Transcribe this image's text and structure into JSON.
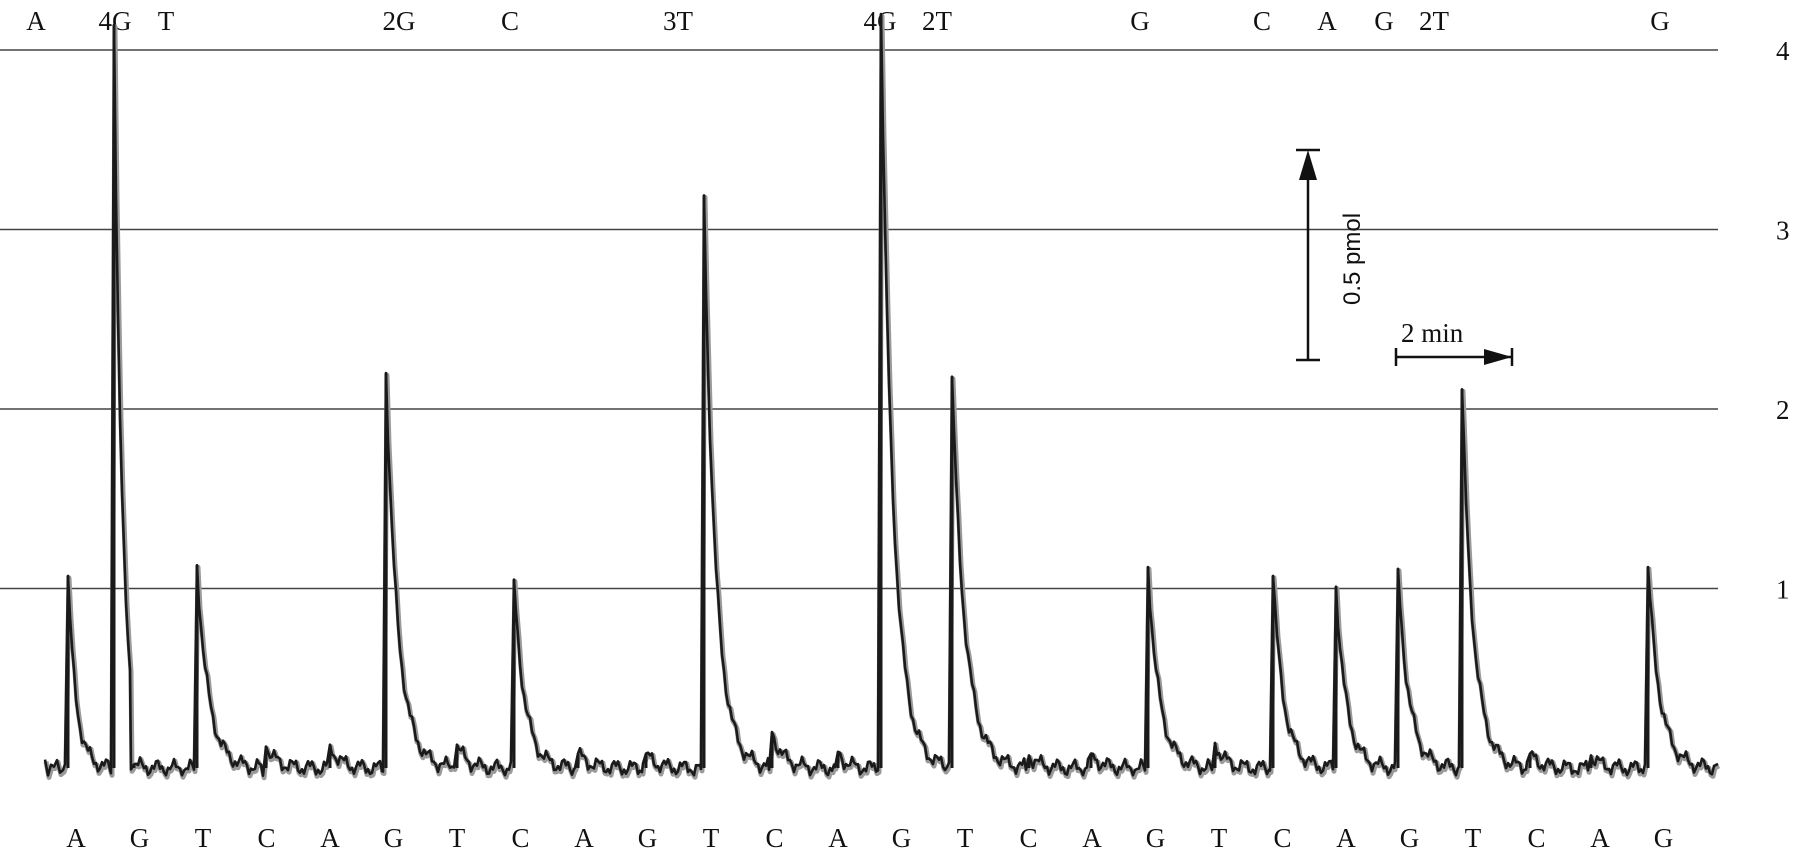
{
  "chart_data": {
    "type": "line",
    "title": "",
    "xlabel": "",
    "ylabel": "",
    "ylim": [
      0,
      4.4
    ],
    "grid": true,
    "gridlines": [
      1,
      2,
      3,
      4
    ],
    "right_axis_labels": [
      "1",
      "2",
      "3",
      "4"
    ],
    "top_labels": [
      "A",
      "4G",
      "T",
      "2G",
      "C",
      "3T",
      "4G",
      "2T",
      "G",
      "C",
      "A",
      "G",
      "2T",
      "G"
    ],
    "bottom_labels": [
      "A",
      "G",
      "T",
      "C",
      "A",
      "G",
      "T",
      "C",
      "A",
      "G",
      "T",
      "C",
      "A",
      "G",
      "T",
      "C",
      "A",
      "G",
      "T",
      "C",
      "A",
      "G",
      "T",
      "C",
      "A",
      "G"
    ],
    "series": [
      {
        "values": [
          1.07,
          4.14,
          0.02,
          1.13,
          0.12,
          0.13,
          2.2,
          0.13,
          1.05,
          0.08,
          0.08,
          3.19,
          0.2,
          0.09,
          4.2,
          2.18,
          0.07,
          0.08,
          1.12,
          0.14,
          1.07,
          1.01,
          1.11,
          2.11,
          0.08,
          0.07,
          1.12
        ]
      }
    ],
    "scale_bar_y": {
      "label": "0.5 pmol"
    },
    "scale_bar_x": {
      "label": "2 min"
    }
  }
}
